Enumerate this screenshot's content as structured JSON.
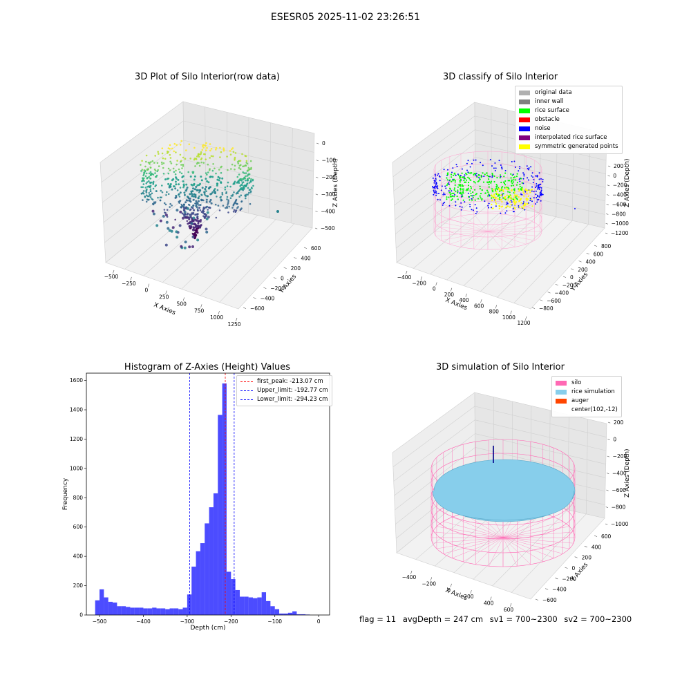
{
  "figure": {
    "suptitle": "ESESR05 2025-11-02 23:26:51"
  },
  "panel1": {
    "title": "3D Plot of Silo Interior(row data)",
    "xlabel": "X Axies",
    "ylabel": "Y Axies",
    "zlabel": "Z Axies (Depth)",
    "xticks": [
      "−500",
      "−250",
      "0",
      "250",
      "500",
      "750",
      "1000",
      "1250"
    ],
    "yticks": [
      "−600",
      "−400",
      "−200",
      "0",
      "200",
      "400",
      "600"
    ],
    "zticks": [
      "0",
      "−100",
      "−200",
      "−300",
      "−400",
      "−500"
    ]
  },
  "panel2": {
    "title": "3D classify of Silo Interior",
    "xlabel": "X Axies",
    "ylabel": "Y Axies",
    "zlabel": "Z Axies (Depth)",
    "xticks": [
      "−400",
      "−200",
      "0",
      "200",
      "400",
      "600",
      "800",
      "1000",
      "1200"
    ],
    "yticks": [
      "−800",
      "−600",
      "−400",
      "−200",
      "0",
      "200",
      "400",
      "600",
      "800"
    ],
    "zticks": [
      "200",
      "0",
      "−200",
      "−400",
      "−600",
      "−800",
      "−1000",
      "−1200"
    ],
    "legend": [
      {
        "label": "original data",
        "color": "#b0b0b0"
      },
      {
        "label": "inner wall",
        "color": "#808080"
      },
      {
        "label": "rice surface",
        "color": "#00ff00"
      },
      {
        "label": "obstacle",
        "color": "#ff0000"
      },
      {
        "label": "noise",
        "color": "#0000ff"
      },
      {
        "label": "interpolated rice surface",
        "color": "#800080"
      },
      {
        "label": "symmetric generated points",
        "color": "#ffff00"
      }
    ]
  },
  "panel4": {
    "title": "3D simulation of Silo Interior",
    "xlabel": "X Axies",
    "ylabel": "Y Axies",
    "zlabel": "Z Axies (Depth)",
    "xticks": [
      "−400",
      "−200",
      "0",
      "200",
      "400",
      "600"
    ],
    "yticks": [
      "−600",
      "−400",
      "−200",
      "0",
      "200",
      "400",
      "600"
    ],
    "zticks": [
      "200",
      "0",
      "−200",
      "−400",
      "−600",
      "−800",
      "−1000"
    ],
    "legend": [
      {
        "label": "silo",
        "color": "#ff69b4"
      },
      {
        "label": "rice simulation",
        "color": "#87ceeb"
      },
      {
        "label": "auger",
        "color": "#ff4500"
      },
      {
        "label": "center(102,-12)",
        "color": ""
      }
    ]
  },
  "status": {
    "flag": "flag = 11",
    "avg_depth": "avgDepth = 247 cm",
    "sv1": "sv1 = 700~2300",
    "sv2": "sv2 = 700~2300"
  },
  "chart_data": [
    {
      "type": "scatter",
      "subtype": "3d-scatter",
      "title": "3D Plot of Silo Interior(row data)",
      "xlabel": "X Axies",
      "ylabel": "Y Axies",
      "zlabel": "Z Axies (Depth)",
      "xlim": [
        -600,
        1300
      ],
      "ylim": [
        -650,
        650
      ],
      "zlim": [
        -560,
        20
      ],
      "colormap": "viridis"
    },
    {
      "type": "scatter",
      "subtype": "3d-scatter",
      "title": "3D classify of Silo Interior",
      "xlabel": "X Axies",
      "ylabel": "Y Axies",
      "zlabel": "Z Axies (Depth)",
      "xlim": [
        -500,
        1250
      ],
      "ylim": [
        -850,
        850
      ],
      "zlim": [
        -1250,
        250
      ],
      "legend_position": "top-right"
    },
    {
      "type": "bar",
      "subtype": "histogram",
      "title": "Histogram of Z-Axies (Height) Values",
      "xlabel": "Depth (cm)",
      "ylabel": "Frequency",
      "xlim": [
        -530,
        25
      ],
      "ylim": [
        0,
        1650
      ],
      "xticks": [
        "−500",
        "−400",
        "−300",
        "−200",
        "−100",
        "0"
      ],
      "yticks": [
        "0",
        "200",
        "400",
        "600",
        "800",
        "1000",
        "1200",
        "1400",
        "1600"
      ],
      "bin_start": -510,
      "bin_width": 10,
      "values": [
        100,
        175,
        120,
        90,
        85,
        60,
        60,
        55,
        50,
        50,
        50,
        45,
        45,
        50,
        45,
        45,
        40,
        45,
        45,
        40,
        50,
        140,
        330,
        435,
        490,
        625,
        735,
        830,
        1365,
        1580,
        295,
        245,
        170,
        125,
        125,
        120,
        115,
        120,
        155,
        95,
        60,
        40,
        10,
        10,
        15,
        25,
        5,
        5,
        3,
        0
      ],
      "color": "#0000ff",
      "lines": [
        {
          "label": "first_peak: -213.07 cm",
          "x": -213.07,
          "color": "#ff0000"
        },
        {
          "label": "Upper_limit: -192.77 cm",
          "x": -192.77,
          "color": "#0000ff"
        },
        {
          "label": "Lower_limit: -294.23 cm",
          "x": -294.23,
          "color": "#0000ff"
        }
      ],
      "legend_position": "top-right"
    },
    {
      "type": "scatter",
      "subtype": "3d-surface",
      "title": "3D simulation of Silo Interior",
      "xlabel": "X Axies",
      "ylabel": "Y Axies",
      "zlabel": "Z Axies (Depth)",
      "xlim": [
        -550,
        700
      ],
      "ylim": [
        -700,
        700
      ],
      "zlim": [
        -1050,
        280
      ],
      "legend_position": "top-right"
    }
  ]
}
